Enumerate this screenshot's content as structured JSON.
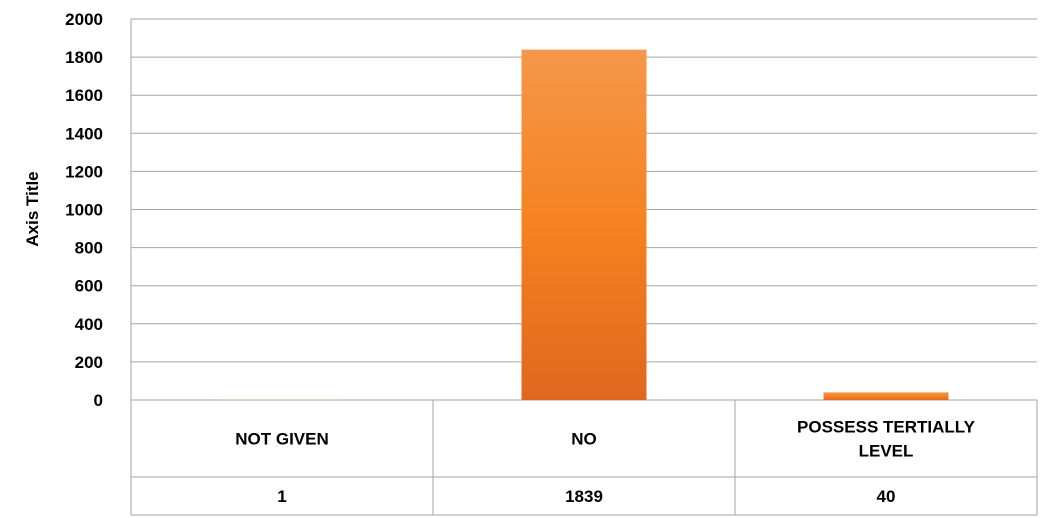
{
  "chart_data": {
    "type": "bar",
    "title": "",
    "xlabel": "",
    "ylabel": "Axis Title",
    "ylim": [
      0,
      2000
    ],
    "yticks": [
      0,
      200,
      400,
      600,
      800,
      1000,
      1200,
      1400,
      1600,
      1800,
      2000
    ],
    "grid": true,
    "legend": "none",
    "data_table": true,
    "categories": [
      [
        "NOT GIVEN"
      ],
      [
        "NO"
      ],
      [
        "POSSESS TERTIALLY",
        "LEVEL"
      ]
    ],
    "values": [
      1,
      1839,
      40
    ],
    "bar_color_top": "#F5974A",
    "bar_color_mid": "#F58220",
    "bar_color_bottom": "#E0671F",
    "gridline_color": "#A6A6A6"
  }
}
